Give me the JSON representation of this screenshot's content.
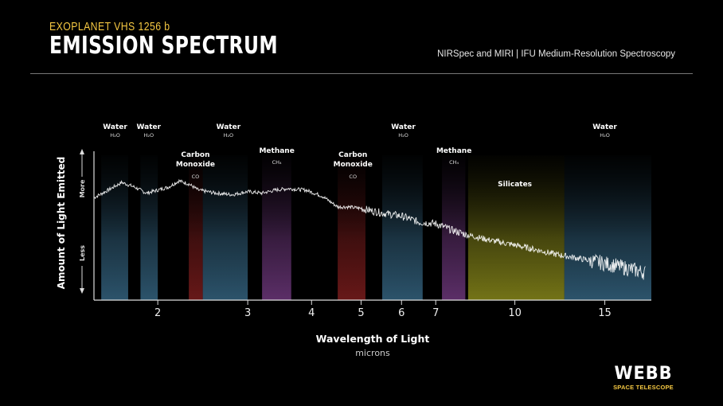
{
  "header": {
    "kicker": "EXOPLANET VHS 1256 b",
    "title": "EMISSION SPECTRUM",
    "subtitle": "NIRSpec and MIRI | IFU Medium-Resolution Spectroscopy"
  },
  "logo": {
    "mark": "WEBB",
    "sub": "SPACE TELESCOPE"
  },
  "chart_data": {
    "type": "line",
    "xlabel": "Wavelength of Light",
    "xunit": "microns",
    "ylabel": "Amount of Light Emitted",
    "y_more": "More",
    "y_less": "Less",
    "x_scale": "log",
    "xlim": [
      1.5,
      18.5
    ],
    "ylim": [
      0,
      1
    ],
    "x_ticks": [
      2,
      3,
      4,
      5,
      6,
      7,
      10,
      15
    ],
    "grid": false,
    "spectrum": {
      "x": [
        1.5,
        1.6,
        1.7,
        1.8,
        1.9,
        2.0,
        2.1,
        2.2,
        2.3,
        2.4,
        2.6,
        2.8,
        3.0,
        3.2,
        3.4,
        3.6,
        3.9,
        4.2,
        4.5,
        4.7,
        5.0,
        5.5,
        6.0,
        6.5,
        7.0,
        7.5,
        8.0,
        9.0,
        10.0,
        11.0,
        12.0,
        13.0,
        14.0,
        15.0,
        16.0,
        17.0,
        18.0
      ],
      "y": [
        0.67,
        0.72,
        0.77,
        0.74,
        0.7,
        0.72,
        0.74,
        0.78,
        0.76,
        0.72,
        0.7,
        0.69,
        0.71,
        0.7,
        0.72,
        0.73,
        0.72,
        0.68,
        0.61,
        0.61,
        0.6,
        0.57,
        0.55,
        0.51,
        0.5,
        0.46,
        0.43,
        0.39,
        0.36,
        0.33,
        0.3,
        0.28,
        0.26,
        0.24,
        0.22,
        0.2,
        0.18
      ]
    },
    "bands": [
      {
        "molecule": "Water",
        "formula": "H₂O",
        "from": 1.55,
        "to": 1.75,
        "color": "#3a6f8f"
      },
      {
        "molecule": "Water",
        "formula": "H₂O",
        "from": 1.85,
        "to": 2.0,
        "color": "#3a6f8f"
      },
      {
        "molecule": "Carbon Monoxide",
        "formula": "CO",
        "from": 2.3,
        "to": 2.45,
        "color": "#8a2020"
      },
      {
        "molecule": "Water",
        "formula": "H₂O",
        "from": 2.45,
        "to": 3.0,
        "color": "#3a6f8f"
      },
      {
        "molecule": "Methane",
        "formula": "CH₄",
        "from": 3.2,
        "to": 3.65,
        "color": "#7a3e8a"
      },
      {
        "molecule": "Carbon Monoxide",
        "formula": "CO",
        "from": 4.5,
        "to": 5.1,
        "color": "#8a2020"
      },
      {
        "molecule": "Water",
        "formula": "H₂O",
        "from": 5.5,
        "to": 6.6,
        "color": "#3a6f8f"
      },
      {
        "molecule": "Methane",
        "formula": "CH₄",
        "from": 7.2,
        "to": 8.0,
        "color": "#7a3e8a"
      },
      {
        "molecule": "Silicates",
        "formula": "",
        "from": 8.1,
        "to": 12.5,
        "color": "#9a9a1e"
      },
      {
        "molecule": "Water",
        "formula": "H₂O",
        "from": 12.5,
        "to": 18.5,
        "color": "#3a6f8f"
      }
    ],
    "labels": [
      {
        "name": "Water",
        "formula": "H₂O",
        "x": 1.65,
        "row": "top"
      },
      {
        "name": "Water",
        "formula": "H₂O",
        "x": 1.92,
        "row": "top"
      },
      {
        "name": "Carbon",
        "name2": "Monoxide",
        "formula": "CO",
        "x": 2.37,
        "row": "mid"
      },
      {
        "name": "Water",
        "formula": "H₂O",
        "x": 2.75,
        "row": "top"
      },
      {
        "name": "Methane",
        "formula": "CH₄",
        "x": 3.42,
        "row": "mid2"
      },
      {
        "name": "Carbon",
        "name2": "Monoxide",
        "formula": "CO",
        "x": 4.82,
        "row": "mid"
      },
      {
        "name": "Water",
        "formula": "H₂O",
        "x": 6.05,
        "row": "top"
      },
      {
        "name": "Methane",
        "formula": "CH₄",
        "x": 7.6,
        "row": "mid2"
      },
      {
        "name": "Silicates",
        "formula": "",
        "x": 10.0,
        "row": "band"
      },
      {
        "name": "Water",
        "formula": "H₂O",
        "x": 15.0,
        "row": "top"
      }
    ]
  }
}
